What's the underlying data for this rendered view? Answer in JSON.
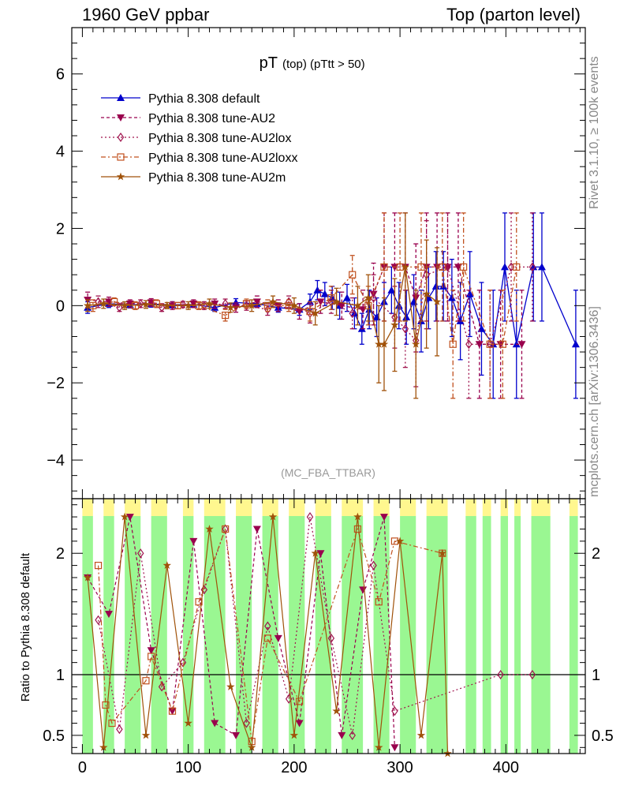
{
  "header": {
    "left": "1960 GeV ppbar",
    "right": "Top (parton level)"
  },
  "side_labels": {
    "rivet": "Rivet 3.1.10, ≥ 100k events",
    "mcplots": "mcplots.cern.ch [arXiv:1306.3436]"
  },
  "plot": {
    "title_main": "pT",
    "title_sub": "(top) (pTtt > 50)",
    "watermark": "(MC_FBA_TTBAR)",
    "ratio_ylabel": "Ratio to Pythia 8.308 default"
  },
  "chart_data": {
    "type": "line",
    "main": {
      "xlim": [
        -10,
        475
      ],
      "ylim": [
        -5,
        7.2
      ],
      "yticks": [
        -4,
        -2,
        0,
        2,
        4,
        6
      ],
      "yticklabels": [
        "−4",
        "−2",
        "0",
        "2",
        "4",
        "6"
      ],
      "xticks": [
        0,
        100,
        200,
        300,
        400
      ],
      "xticklabels": [
        "0",
        "100",
        "200",
        "300",
        "400"
      ],
      "series": [
        {
          "name": "Pythia 8.308 default",
          "color": "#0000cc",
          "marker": "triangle-up",
          "dash": "",
          "x": [
            5,
            25,
            45,
            65,
            85,
            105,
            125,
            145,
            165,
            185,
            205,
            215,
            222,
            229,
            236,
            243,
            250,
            257,
            264,
            271,
            278,
            285,
            292,
            299,
            306,
            313,
            320,
            327,
            334,
            341,
            349,
            357,
            366,
            377,
            388,
            399,
            410,
            426,
            434,
            466
          ],
          "y": [
            -0.05,
            0.05,
            0.02,
            0.04,
            0.02,
            0.03,
            -0.05,
            0.08,
            0.05,
            -0.05,
            -0.1,
            0.1,
            0.4,
            0.3,
            0.2,
            0.0,
            0.2,
            -0.2,
            -0.6,
            -0.1,
            -0.3,
            0.1,
            0.4,
            0.0,
            -0.3,
            0.1,
            -0.4,
            0.2,
            0.5,
            0.5,
            0.2,
            -0.4,
            0.3,
            -0.6,
            -1.0,
            1.0,
            -1.0,
            1.0,
            1.0,
            -1.0
          ],
          "err": [
            0.15,
            0.1,
            0.08,
            0.08,
            0.08,
            0.08,
            0.1,
            0.1,
            0.1,
            0.12,
            0.15,
            0.2,
            0.25,
            0.3,
            0.3,
            0.35,
            0.35,
            0.4,
            0.4,
            0.5,
            0.5,
            0.5,
            0.6,
            0.6,
            0.7,
            0.7,
            0.8,
            0.8,
            0.9,
            0.9,
            1.0,
            1.0,
            1.1,
            1.2,
            1.4,
            1.4,
            1.4,
            1.4,
            1.4,
            1.4
          ]
        },
        {
          "name": "Pythia 8.308 tune-AU2",
          "color": "#99004d",
          "marker": "triangle-down",
          "dash": "4,3",
          "x": [
            5,
            25,
            45,
            65,
            85,
            105,
            125,
            145,
            165,
            185,
            205,
            225,
            245,
            265,
            275,
            285,
            295,
            305,
            315,
            325,
            335,
            345,
            355,
            375,
            395,
            415
          ],
          "y": [
            0.15,
            0.1,
            0.05,
            0.08,
            0.0,
            0.05,
            0.05,
            -0.05,
            0.1,
            0.0,
            -0.15,
            0.1,
            0.0,
            -0.1,
            0.3,
            1.0,
            1.0,
            1.0,
            0.2,
            1.0,
            1.0,
            1.0,
            1.0,
            -1.0,
            -1.0,
            -1.0
          ],
          "err": [
            0.2,
            0.12,
            0.1,
            0.1,
            0.1,
            0.1,
            0.12,
            0.12,
            0.15,
            0.15,
            0.2,
            0.3,
            0.35,
            0.5,
            0.8,
            1.4,
            1.4,
            1.4,
            1.4,
            1.4,
            1.4,
            1.4,
            1.4,
            1.4,
            1.4,
            1.4
          ]
        },
        {
          "name": "Pythia 8.308 tune-AU2lox",
          "color": "#a0144e",
          "marker": "diamond-open",
          "dash": "2,3",
          "x": [
            15,
            35,
            55,
            75,
            95,
            115,
            135,
            155,
            175,
            195,
            215,
            235,
            255,
            275,
            295,
            305,
            315,
            325,
            345,
            365,
            385,
            405,
            425
          ],
          "y": [
            0.1,
            -0.05,
            0.05,
            -0.05,
            0.03,
            0.0,
            0.05,
            0.0,
            -0.1,
            0.1,
            -0.2,
            0.1,
            -0.2,
            0.2,
            -0.3,
            -0.6,
            -0.9,
            0.8,
            1.0,
            -1.0,
            -1.0,
            1.0,
            1.0
          ],
          "err": [
            0.15,
            0.1,
            0.1,
            0.1,
            0.08,
            0.1,
            0.12,
            0.12,
            0.15,
            0.15,
            0.25,
            0.3,
            0.4,
            0.6,
            0.8,
            1.0,
            1.2,
            1.4,
            1.4,
            1.4,
            1.4,
            1.4,
            1.4
          ]
        },
        {
          "name": "Pythia 8.308 tune-AU2loxx",
          "color": "#c0501e",
          "marker": "square-open",
          "dash": "6,3,2,3",
          "x": [
            10,
            30,
            50,
            70,
            90,
            110,
            135,
            155,
            175,
            195,
            215,
            235,
            255,
            270,
            285,
            300,
            320,
            340,
            350,
            360,
            385,
            397,
            410
          ],
          "y": [
            0.0,
            0.1,
            0.0,
            0.05,
            0.0,
            0.0,
            -0.25,
            0.05,
            0.0,
            0.0,
            -0.15,
            0.2,
            0.8,
            0.0,
            1.0,
            1.0,
            1.0,
            1.0,
            -1.0,
            1.0,
            -1.0,
            -1.0,
            1.0
          ],
          "err": [
            0.15,
            0.1,
            0.1,
            0.1,
            0.08,
            0.1,
            0.15,
            0.12,
            0.15,
            0.15,
            0.25,
            0.3,
            0.5,
            0.5,
            1.4,
            1.4,
            1.4,
            1.4,
            1.4,
            1.4,
            1.4,
            1.4,
            1.4
          ]
        },
        {
          "name": "Pythia 8.308 tune-AU2m",
          "color": "#a0520a",
          "marker": "star",
          "dash": "",
          "x": [
            5,
            20,
            40,
            60,
            80,
            100,
            120,
            140,
            160,
            180,
            200,
            220,
            240,
            260,
            270,
            280,
            285,
            295,
            305,
            315,
            325,
            335
          ],
          "y": [
            0.0,
            0.05,
            0.0,
            0.03,
            0.0,
            0.0,
            0.05,
            -0.05,
            0.0,
            0.1,
            0.0,
            -0.2,
            0.1,
            0.0,
            0.2,
            -1.0,
            -1.0,
            -0.5,
            1.0,
            -1.0,
            0.3,
            0.1
          ],
          "err": [
            0.15,
            0.12,
            0.1,
            0.1,
            0.08,
            0.1,
            0.12,
            0.12,
            0.15,
            0.15,
            0.2,
            0.3,
            0.35,
            0.5,
            0.6,
            1.0,
            1.2,
            1.2,
            1.4,
            1.4,
            1.4,
            1.4
          ]
        }
      ]
    },
    "ratio": {
      "ylim": [
        0.35,
        2.45
      ],
      "yticks": [
        0.5,
        1,
        2
      ],
      "yticklabels": [
        "0.5",
        "1",
        "2"
      ],
      "reference": 1,
      "band_inner_color": "#9af792",
      "band_outer_color": "#fff78f",
      "band_bins": [
        {
          "x0": 0,
          "x1": 10
        },
        {
          "x0": 20,
          "x1": 30
        },
        {
          "x0": 40,
          "x1": 55
        },
        {
          "x0": 65,
          "x1": 80
        },
        {
          "x0": 95,
          "x1": 105
        },
        {
          "x0": 115,
          "x1": 135
        },
        {
          "x0": 145,
          "x1": 160
        },
        {
          "x0": 170,
          "x1": 185
        },
        {
          "x0": 195,
          "x1": 210
        },
        {
          "x0": 220,
          "x1": 235
        },
        {
          "x0": 245,
          "x1": 265
        },
        {
          "x0": 275,
          "x1": 290
        },
        {
          "x0": 300,
          "x1": 315
        },
        {
          "x0": 325,
          "x1": 345
        },
        {
          "x0": 362,
          "x1": 372
        },
        {
          "x0": 378,
          "x1": 386
        },
        {
          "x0": 395,
          "x1": 402
        },
        {
          "x0": 408,
          "x1": 414
        },
        {
          "x0": 424,
          "x1": 442
        },
        {
          "x0": 460,
          "x1": 468
        }
      ],
      "series": [
        {
          "name": "Pythia 8.308 tune-AU2",
          "x": [
            5,
            25,
            45,
            65,
            85,
            105,
            125,
            145,
            165,
            185,
            205,
            225,
            245,
            265,
            285,
            295
          ],
          "y": [
            1.8,
            1.5,
            2.3,
            1.2,
            0.7,
            2.1,
            0.6,
            0.5,
            2.2,
            1.3,
            0.6,
            2.0,
            0.5,
            1.7,
            2.3,
            0.4
          ]
        },
        {
          "name": "Pythia 8.308 tune-AU2lox",
          "x": [
            15,
            35,
            55,
            75,
            95,
            115,
            135,
            155,
            175,
            195,
            215,
            235,
            255,
            275,
            295,
            395,
            425
          ],
          "y": [
            1.45,
            0.55,
            2.0,
            0.9,
            1.1,
            1.7,
            2.2,
            0.6,
            1.4,
            0.8,
            2.3,
            1.3,
            0.5,
            1.9,
            0.7,
            1.0,
            1.0
          ]
        },
        {
          "name": "Pythia 8.308 tune-AU2loxx",
          "x": [
            15,
            22,
            28,
            60,
            65,
            85,
            110,
            135,
            160,
            175,
            205,
            260,
            280,
            295,
            340
          ],
          "y": [
            1.9,
            0.75,
            0.6,
            0.95,
            1.15,
            0.7,
            1.6,
            2.2,
            0.45,
            1.3,
            0.78,
            2.2,
            1.6,
            2.1,
            2.0
          ]
        },
        {
          "name": "Pythia 8.308 tune-AU2m",
          "x": [
            5,
            20,
            40,
            60,
            80,
            100,
            120,
            140,
            160,
            180,
            200,
            220,
            240,
            260,
            280,
            300,
            320,
            340,
            345
          ],
          "y": [
            1.8,
            0.4,
            2.3,
            0.5,
            1.9,
            0.6,
            2.2,
            0.9,
            0.4,
            2.3,
            0.5,
            2.0,
            0.7,
            2.3,
            0.4,
            2.1,
            0.5,
            2.0,
            0.35
          ]
        }
      ]
    }
  }
}
